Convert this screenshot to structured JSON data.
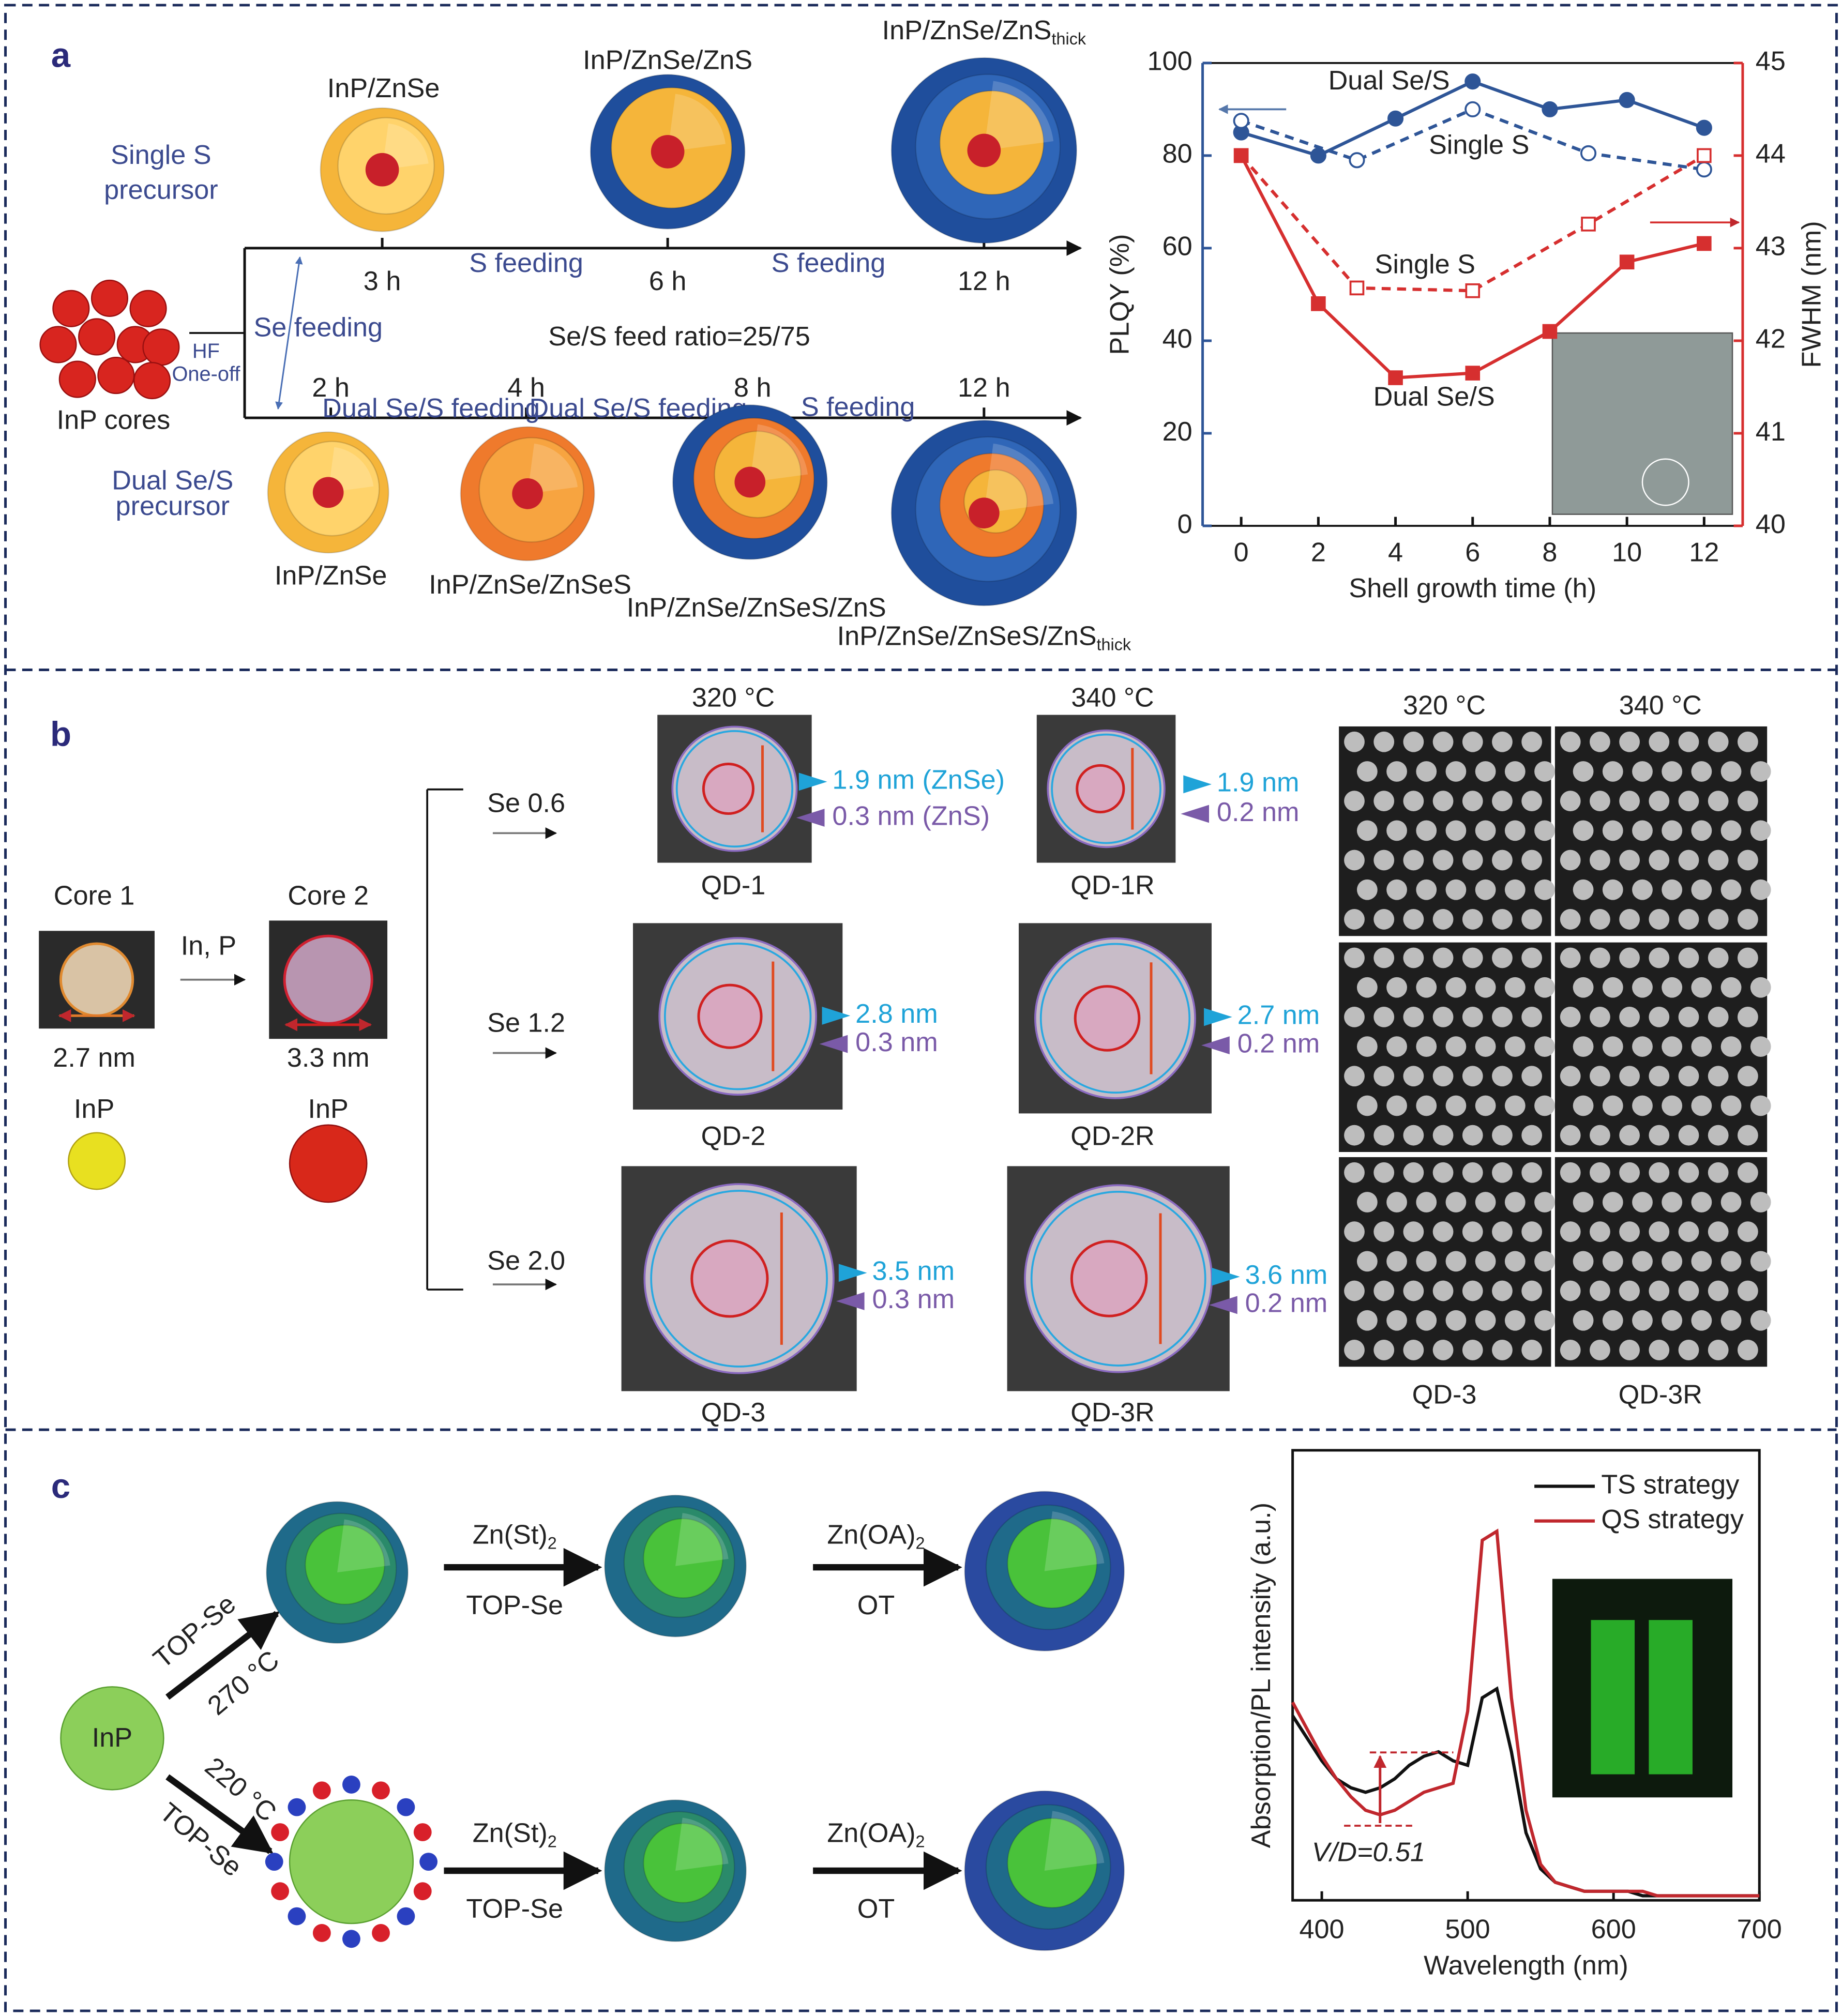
{
  "panel_a": {
    "label": "a",
    "single_s_precursor": [
      "Single S",
      "precursor"
    ],
    "dual_precursor": [
      "Dual Se/S",
      "precursor"
    ],
    "cores": "InP cores",
    "hf": [
      "HF",
      "One-off"
    ],
    "se_feeding": "Se feeding",
    "feed_ratio": "Se/S feed ratio=25/75",
    "top_times": [
      "3 h",
      "6 h",
      "12 h"
    ],
    "top_feeding": [
      "S feeding",
      "S feeding"
    ],
    "bottom_times": [
      "2 h",
      "4 h",
      "8 h",
      "12 h"
    ],
    "bottom_feeding": [
      "Dual Se/S feeding",
      "Dual Se/S feeding",
      "S feeding"
    ],
    "top_particles": [
      {
        "text": "InP/ZnSe"
      },
      {
        "text": "InP/ZnSe/ZnS"
      },
      {
        "text": "InP/ZnSe/ZnS",
        "sub": "thick"
      }
    ],
    "bottom_particles": [
      {
        "text": "InP/ZnSe"
      },
      {
        "text": "InP/ZnSe/ZnSeS"
      },
      {
        "text": "InP/ZnSe/ZnSeS/ZnS"
      },
      {
        "text": "InP/ZnSe/ZnSeS/ZnS",
        "sub": "thick"
      }
    ]
  },
  "panel_b": {
    "label": "b",
    "cores": [
      {
        "name": "Core 1",
        "size": "2.7 nm",
        "material": "InP"
      },
      {
        "name": "Core 2",
        "size": "3.3 nm",
        "material": "InP"
      }
    ],
    "reagent": "In, P",
    "se_levels": [
      "Se 0.6",
      "Se 1.2",
      "Se 2.0"
    ],
    "temperatures": [
      "320 °C",
      "340 °C"
    ],
    "qds": [
      [
        {
          "name": "QD-1",
          "znse": "1.9 nm (ZnSe)",
          "zns": "0.3 nm (ZnS)"
        },
        {
          "name": "QD-1R",
          "znse": "1.9 nm",
          "zns": "0.2 nm"
        }
      ],
      [
        {
          "name": "QD-2",
          "znse": "2.8 nm",
          "zns": "0.3 nm"
        },
        {
          "name": "QD-2R",
          "znse": "2.7 nm",
          "zns": "0.2 nm"
        }
      ],
      [
        {
          "name": "QD-3",
          "znse": "3.5 nm",
          "zns": "0.3 nm"
        },
        {
          "name": "QD-3R",
          "znse": "3.6 nm",
          "zns": "0.2 nm"
        }
      ]
    ],
    "sem": {
      "temperatures": [
        "320 °C",
        "340 °C"
      ],
      "labels": [
        "QD-3",
        "QD-3R"
      ]
    }
  },
  "panel_c": {
    "label": "c",
    "core": "InP",
    "top_route": [
      "TOP-Se",
      "270 °C"
    ],
    "bottom_route": [
      "220 °C",
      "TOP-Se"
    ],
    "rows": [
      [
        {
          "text": "Zn(St)",
          "sub": "2",
          "ligand": "TOP-Se"
        },
        {
          "text": "Zn(OA)",
          "sub": "2",
          "ligand": "OT"
        }
      ],
      [
        {
          "text": "Zn(St)",
          "sub": "2",
          "ligand": "TOP-Se"
        },
        {
          "text": "Zn(OA)",
          "sub": "2",
          "ligand": "OT"
        }
      ]
    ]
  },
  "chart_data": [
    {
      "type": "line",
      "xlabel": "Shell growth time (h)",
      "ylabel": "PLQY (%)",
      "y2label": "FWHM (nm)",
      "xlim": [
        -1,
        13
      ],
      "xticks": [
        0,
        2,
        4,
        6,
        8,
        10,
        12
      ],
      "ylim": [
        0,
        100
      ],
      "yticks": [
        0,
        20,
        40,
        60,
        80,
        100
      ],
      "y2lim": [
        40,
        45
      ],
      "y2ticks": [
        40,
        41,
        42,
        43,
        44,
        45
      ],
      "grid": false,
      "series": [
        {
          "name": "Dual Se/S",
          "color": "#2e5597",
          "linestyle": "solid",
          "marker": "circle",
          "filled": true,
          "x": [
            0,
            2,
            4,
            6,
            8,
            10,
            12
          ],
          "values": [
            85,
            80,
            88,
            96,
            90,
            92,
            86
          ]
        },
        {
          "name": "Single S",
          "color": "#2e5597",
          "linestyle": "dashed",
          "marker": "circle",
          "filled": false,
          "x": [
            0,
            3,
            6,
            9,
            12
          ],
          "values": [
            87.5,
            79,
            90,
            80.5,
            77
          ]
        },
        {
          "name": "Single S",
          "color": "#d62f2f",
          "linestyle": "dashed",
          "marker": "square",
          "filled": false,
          "axis": "y2",
          "x": [
            0,
            3,
            6,
            9,
            12
          ],
          "values": [
            44,
            42.57,
            42.54,
            43.26,
            44
          ]
        },
        {
          "name": "Dual Se/S",
          "color": "#d62f2f",
          "linestyle": "solid",
          "marker": "square",
          "filled": true,
          "axis": "y2",
          "x": [
            0,
            2,
            4,
            6,
            8,
            10,
            12
          ],
          "values": [
            44,
            42.4,
            41.6,
            41.65,
            42.1,
            42.85,
            43.05
          ]
        }
      ]
    },
    {
      "type": "line",
      "xlabel": "Wavelength (nm)",
      "ylabel": "Absorption/PL intensity (a.u.)",
      "xlim": [
        380,
        700
      ],
      "xticks": [
        400,
        500,
        600,
        700
      ],
      "ylim": [
        0,
        1
      ],
      "legend": "upper right",
      "annotation": "V/D=0.51",
      "x": [
        380,
        390,
        400,
        410,
        420,
        430,
        440,
        450,
        460,
        470,
        480,
        490,
        500,
        510,
        520,
        530,
        540,
        550,
        560,
        570,
        580,
        590,
        600,
        610,
        620,
        630,
        640,
        650,
        660,
        670,
        680,
        690,
        700
      ],
      "series": [
        {
          "name": "TS strategy",
          "color": "#111111",
          "values": [
            0.41,
            0.36,
            0.31,
            0.27,
            0.25,
            0.24,
            0.25,
            0.27,
            0.3,
            0.32,
            0.33,
            0.31,
            0.3,
            0.45,
            0.47,
            0.33,
            0.15,
            0.07,
            0.04,
            0.03,
            0.02,
            0.02,
            0.02,
            0.02,
            0.01,
            0.01,
            0.01,
            0.01,
            0.01,
            0.01,
            0.01,
            0.01,
            0.01
          ]
        },
        {
          "name": "QS strategy",
          "color": "#c0272d",
          "values": [
            0.44,
            0.38,
            0.32,
            0.27,
            0.23,
            0.2,
            0.19,
            0.2,
            0.22,
            0.24,
            0.25,
            0.26,
            0.42,
            0.8,
            0.82,
            0.45,
            0.2,
            0.08,
            0.04,
            0.03,
            0.02,
            0.02,
            0.02,
            0.02,
            0.02,
            0.01,
            0.01,
            0.01,
            0.01,
            0.01,
            0.01,
            0.01,
            0.01
          ]
        }
      ]
    }
  ]
}
